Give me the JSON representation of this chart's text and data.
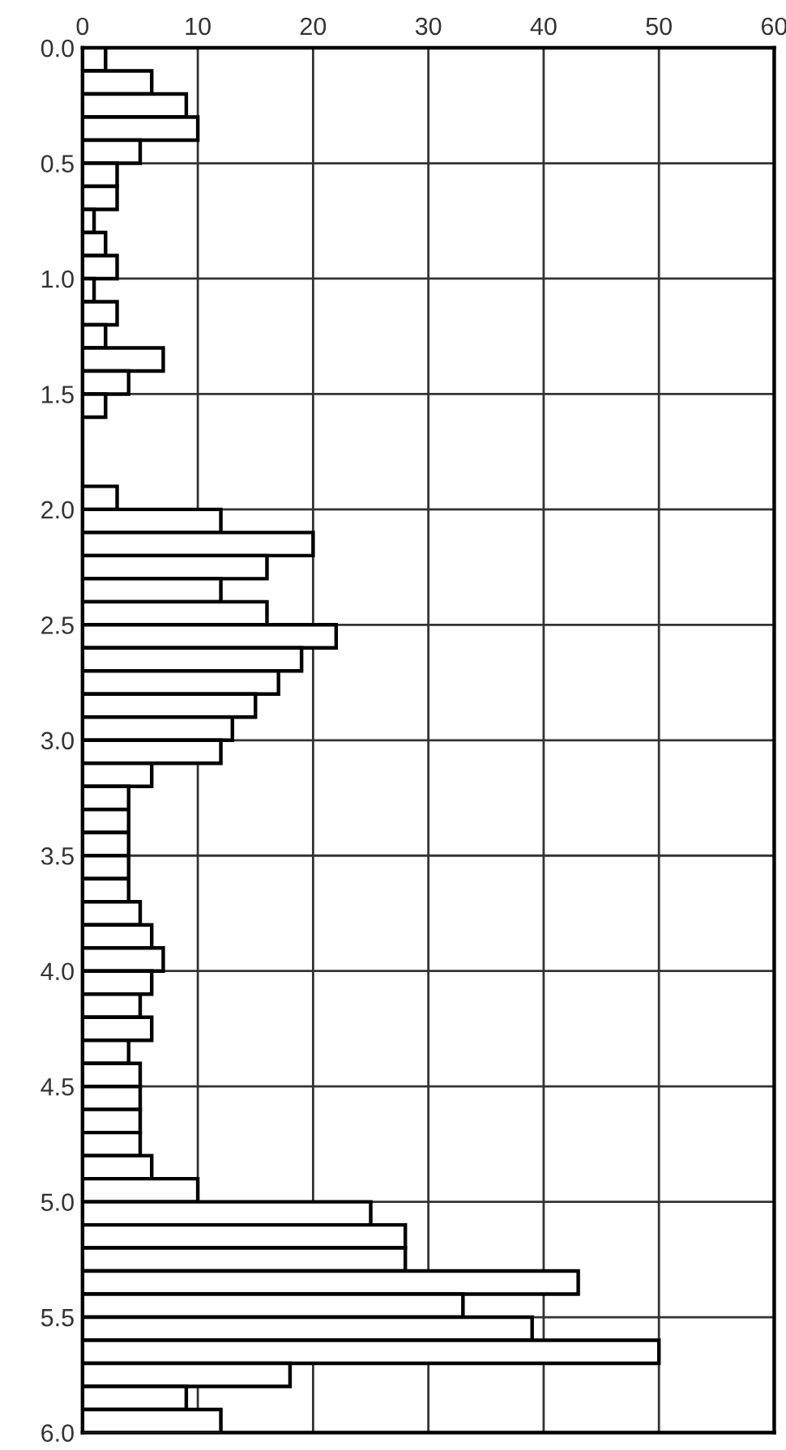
{
  "chart_data": {
    "type": "histogram",
    "orientation": "horizontal",
    "color": "#ffffff",
    "bins": [
      0.0,
      0.1,
      0.2,
      0.3,
      0.4,
      0.5,
      0.6,
      0.7,
      0.8,
      0.9,
      1.0,
      1.1,
      1.2,
      1.3,
      1.4,
      1.5,
      1.6,
      1.7,
      1.8,
      1.9,
      2.0,
      2.1,
      2.2,
      2.3,
      2.4,
      2.5,
      2.6,
      2.7,
      2.8,
      2.9,
      3.0,
      3.1,
      3.2,
      3.3,
      3.4,
      3.5,
      3.6,
      3.7,
      3.8,
      3.9,
      4.0,
      4.1,
      4.2,
      4.3,
      4.4,
      4.5,
      4.6,
      4.7,
      4.8,
      4.9,
      5.0,
      5.1,
      5.2,
      5.3,
      5.4,
      5.5,
      5.6,
      5.7,
      5.8,
      5.9,
      6.0
    ],
    "values": [
      2,
      6,
      9,
      10,
      5,
      3,
      3,
      1,
      2,
      3,
      1,
      3,
      2,
      7,
      4,
      2,
      0,
      0,
      0,
      3,
      12,
      20,
      16,
      12,
      16,
      22,
      19,
      17,
      15,
      13,
      12,
      6,
      4,
      4,
      4,
      4,
      4,
      5,
      6,
      7,
      6,
      5,
      6,
      4,
      5,
      5,
      5,
      5,
      6,
      10,
      25,
      28,
      28,
      43,
      33,
      39,
      50,
      18,
      9,
      12
    ],
    "xlim": [
      0,
      60
    ],
    "xticks": [
      0,
      10,
      20,
      30,
      40,
      50,
      60
    ],
    "ylim": [
      6.0,
      0.0
    ],
    "yticks": [
      {
        "value": 0.0,
        "label": "0.0"
      },
      {
        "value": 0.5,
        "label": "0.5"
      },
      {
        "value": 1.0,
        "label": "1.0"
      },
      {
        "value": 1.5,
        "label": "1.5"
      },
      {
        "value": 2.0,
        "label": "2.0"
      },
      {
        "value": 2.5,
        "label": "2.5"
      },
      {
        "value": 3.0,
        "label": "3.0"
      },
      {
        "value": 3.5,
        "label": "3.5"
      },
      {
        "value": 4.0,
        "label": "4.0"
      },
      {
        "value": 4.5,
        "label": "4.5"
      },
      {
        "value": 5.0,
        "label": "5.0"
      },
      {
        "value": 5.5,
        "label": "5.5"
      },
      {
        "value": 6.0,
        "label": "6.0"
      }
    ],
    "grid": true
  }
}
